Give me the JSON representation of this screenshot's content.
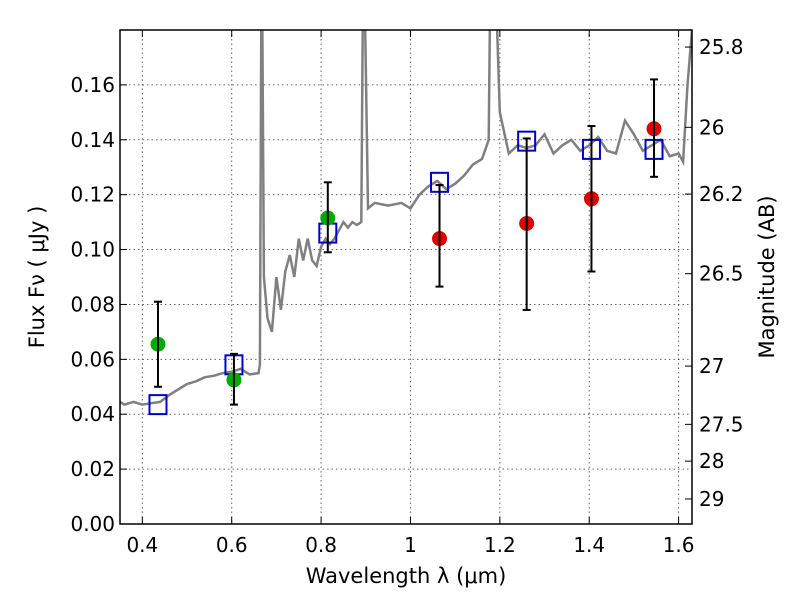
{
  "chart_data": {
    "type": "scatter",
    "xlabel": "Wavelength  λ (μm)",
    "ylabel": "Flux  Fν  ( μJy )",
    "ylabel_right": "Magnitude (AB)",
    "xlim": [
      0.35,
      1.63
    ],
    "ylim": [
      0.0,
      0.18
    ],
    "x_ticks": [
      "0.4",
      "0.6",
      "0.8",
      "1",
      "1.2",
      "1.4",
      "1.6"
    ],
    "y_ticks": [
      "0.00",
      "0.02",
      "0.04",
      "0.06",
      "0.08",
      "0.10",
      "0.12",
      "0.14",
      "0.16"
    ],
    "right_ticks": [
      "25.8",
      "26",
      "26.2",
      "26.5",
      "27",
      "27.5",
      "28",
      "29"
    ],
    "grid": true,
    "colors": {
      "model_spectrum": "#808080",
      "model_photometry": "#0000cc",
      "green_points": "#00aa00",
      "red_points": "#dd0000",
      "error_bars": "#000000"
    },
    "series": [
      {
        "marker": "line",
        "color": "#808080",
        "points": [
          [
            0.35,
            0.0445
          ],
          [
            0.36,
            0.0435
          ],
          [
            0.38,
            0.0445
          ],
          [
            0.4,
            0.0435
          ],
          [
            0.42,
            0.044
          ],
          [
            0.44,
            0.0445
          ],
          [
            0.46,
            0.047
          ],
          [
            0.48,
            0.049
          ],
          [
            0.5,
            0.051
          ],
          [
            0.52,
            0.052
          ],
          [
            0.54,
            0.0535
          ],
          [
            0.56,
            0.054
          ],
          [
            0.58,
            0.055
          ],
          [
            0.6,
            0.0555
          ],
          [
            0.62,
            0.0565
          ],
          [
            0.64,
            0.0545
          ],
          [
            0.66,
            0.055
          ],
          [
            0.663,
            0.058
          ],
          [
            0.667,
            0.22
          ],
          [
            0.672,
            0.09
          ],
          [
            0.68,
            0.075
          ],
          [
            0.69,
            0.07
          ],
          [
            0.7,
            0.09
          ],
          [
            0.71,
            0.078
          ],
          [
            0.72,
            0.092
          ],
          [
            0.73,
            0.098
          ],
          [
            0.74,
            0.09
          ],
          [
            0.75,
            0.104
          ],
          [
            0.76,
            0.096
          ],
          [
            0.77,
            0.104
          ],
          [
            0.78,
            0.096
          ],
          [
            0.79,
            0.094
          ],
          [
            0.8,
            0.101
          ],
          [
            0.81,
            0.104
          ],
          [
            0.82,
            0.102
          ],
          [
            0.83,
            0.104
          ],
          [
            0.84,
            0.107
          ],
          [
            0.85,
            0.11
          ],
          [
            0.86,
            0.108
          ],
          [
            0.87,
            0.11
          ],
          [
            0.88,
            0.109
          ],
          [
            0.89,
            0.11
          ],
          [
            0.895,
            0.22
          ],
          [
            0.905,
            0.115
          ],
          [
            0.92,
            0.117
          ],
          [
            0.95,
            0.116
          ],
          [
            0.98,
            0.117
          ],
          [
            1.0,
            0.115
          ],
          [
            1.02,
            0.12
          ],
          [
            1.04,
            0.123
          ],
          [
            1.06,
            0.125
          ],
          [
            1.08,
            0.122
          ],
          [
            1.1,
            0.124
          ],
          [
            1.12,
            0.127
          ],
          [
            1.14,
            0.131
          ],
          [
            1.16,
            0.133
          ],
          [
            1.175,
            0.14
          ],
          [
            1.18,
            0.22
          ],
          [
            1.19,
            0.2
          ],
          [
            1.2,
            0.15
          ],
          [
            1.22,
            0.135
          ],
          [
            1.24,
            0.138
          ],
          [
            1.26,
            0.137
          ],
          [
            1.28,
            0.138
          ],
          [
            1.3,
            0.142
          ],
          [
            1.32,
            0.135
          ],
          [
            1.34,
            0.138
          ],
          [
            1.36,
            0.14
          ],
          [
            1.38,
            0.136
          ],
          [
            1.4,
            0.138
          ],
          [
            1.42,
            0.141
          ],
          [
            1.44,
            0.136
          ],
          [
            1.46,
            0.135
          ],
          [
            1.48,
            0.147
          ],
          [
            1.5,
            0.142
          ],
          [
            1.52,
            0.136
          ],
          [
            1.54,
            0.138
          ],
          [
            1.56,
            0.14
          ],
          [
            1.58,
            0.134
          ],
          [
            1.6,
            0.135
          ],
          [
            1.61,
            0.132
          ],
          [
            1.62,
            0.16
          ],
          [
            1.63,
            0.18
          ]
        ]
      },
      {
        "marker": "square",
        "color": "#0000cc",
        "points": [
          [
            0.435,
            0.0435
          ],
          [
            0.605,
            0.058
          ],
          [
            0.815,
            0.106
          ],
          [
            1.065,
            0.1245
          ],
          [
            1.26,
            0.1395
          ],
          [
            1.405,
            0.1365
          ],
          [
            1.545,
            0.1365
          ]
        ]
      },
      {
        "marker": "circle",
        "color": "#00aa00",
        "points": [
          [
            0.435,
            0.0655
          ],
          [
            0.605,
            0.0525
          ],
          [
            0.815,
            0.1115
          ]
        ]
      },
      {
        "marker": "circle",
        "color": "#dd0000",
        "points": [
          [
            1.065,
            0.104
          ],
          [
            1.26,
            0.1095
          ],
          [
            1.405,
            0.1185
          ],
          [
            1.545,
            0.144
          ]
        ]
      },
      {
        "marker": "errorbar",
        "color": "#000000",
        "bars": [
          [
            0.435,
            0.05,
            0.081
          ],
          [
            0.605,
            0.0435,
            0.062
          ],
          [
            0.815,
            0.099,
            0.1245
          ],
          [
            1.065,
            0.0865,
            0.1235
          ],
          [
            1.26,
            0.078,
            0.1405
          ],
          [
            1.405,
            0.092,
            0.145
          ],
          [
            1.545,
            0.1265,
            0.162
          ]
        ]
      }
    ]
  }
}
